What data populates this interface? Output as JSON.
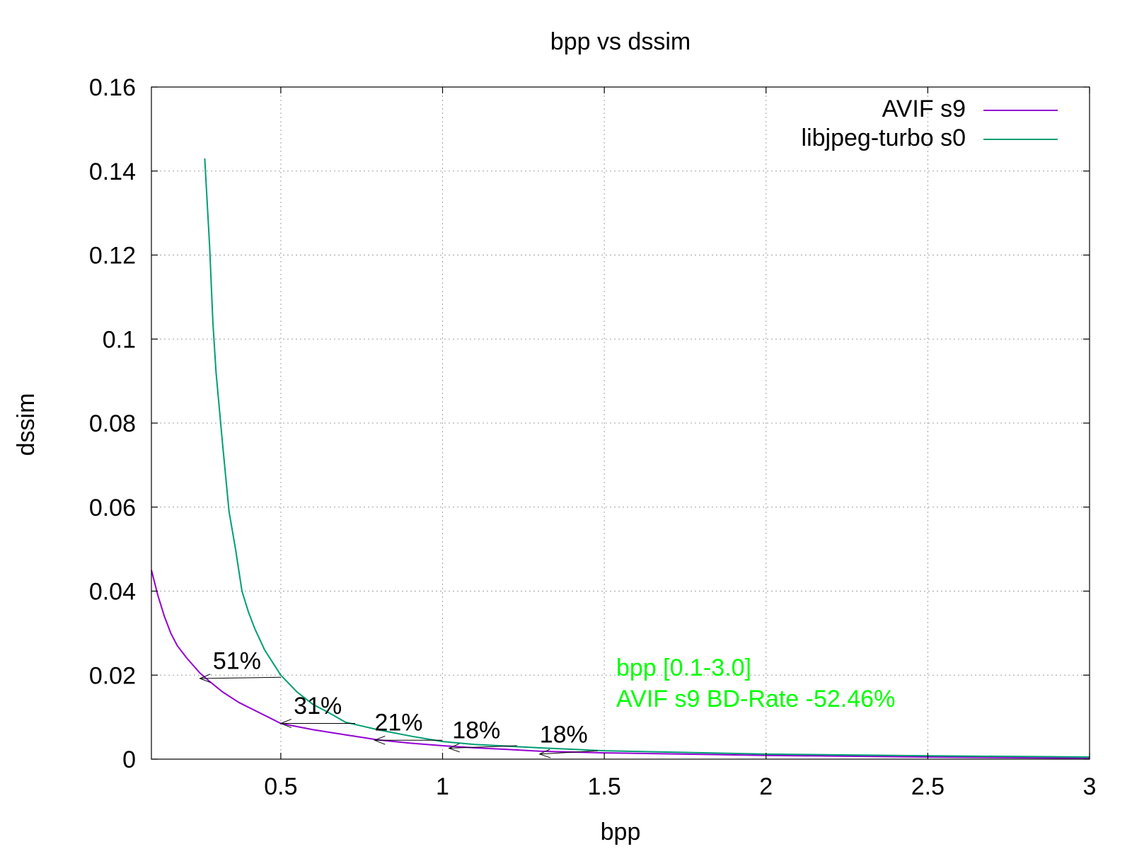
{
  "chart_data": {
    "type": "line",
    "title": "bpp vs dssim",
    "xlabel": "bpp",
    "ylabel": "dssim",
    "xlim": [
      0.1,
      3.0
    ],
    "ylim": [
      0,
      0.16
    ],
    "xticks": [
      0.5,
      1,
      1.5,
      2,
      2.5,
      3
    ],
    "xtick_labels": [
      "0.5",
      "1",
      "1.5",
      "2",
      "2.5",
      "3"
    ],
    "yticks": [
      0,
      0.02,
      0.04,
      0.06,
      0.08,
      0.1,
      0.12,
      0.14,
      0.16
    ],
    "ytick_labels": [
      "0",
      "0.02",
      "0.04",
      "0.06",
      "0.08",
      "0.1",
      "0.12",
      "0.14",
      "0.16"
    ],
    "grid": true,
    "legend_position": "top-right",
    "series": [
      {
        "name": "AVIF s9",
        "color": "#9400d3",
        "points": [
          [
            0.1,
            0.045
          ],
          [
            0.12,
            0.039
          ],
          [
            0.14,
            0.034
          ],
          [
            0.16,
            0.03
          ],
          [
            0.18,
            0.027
          ],
          [
            0.21,
            0.024
          ],
          [
            0.25,
            0.0205
          ],
          [
            0.28,
            0.0185
          ],
          [
            0.32,
            0.016
          ],
          [
            0.37,
            0.0135
          ],
          [
            0.43,
            0.0112
          ],
          [
            0.5,
            0.0085
          ],
          [
            0.6,
            0.007
          ],
          [
            0.7,
            0.0058
          ],
          [
            0.8,
            0.0046
          ],
          [
            0.9,
            0.0038
          ],
          [
            1.0,
            0.0032
          ],
          [
            1.1,
            0.0027
          ],
          [
            1.2,
            0.0023
          ],
          [
            1.3,
            0.0019
          ],
          [
            1.5,
            0.0015
          ],
          [
            1.75,
            0.0012
          ],
          [
            2.0,
            0.0009
          ],
          [
            2.5,
            0.0005
          ],
          [
            3.0,
            0.0002
          ]
        ]
      },
      {
        "name": "libjpeg-turbo s0",
        "color": "#009e73",
        "points": [
          [
            0.265,
            0.143
          ],
          [
            0.28,
            0.122
          ],
          [
            0.29,
            0.104
          ],
          [
            0.3,
            0.092
          ],
          [
            0.32,
            0.075
          ],
          [
            0.34,
            0.059
          ],
          [
            0.36,
            0.05
          ],
          [
            0.38,
            0.04
          ],
          [
            0.4,
            0.035
          ],
          [
            0.42,
            0.031
          ],
          [
            0.45,
            0.026
          ],
          [
            0.5,
            0.02
          ],
          [
            0.55,
            0.016
          ],
          [
            0.6,
            0.013
          ],
          [
            0.65,
            0.011
          ],
          [
            0.7,
            0.0088
          ],
          [
            0.8,
            0.007
          ],
          [
            0.9,
            0.0055
          ],
          [
            1.0,
            0.0042
          ],
          [
            1.1,
            0.0035
          ],
          [
            1.3,
            0.0027
          ],
          [
            1.5,
            0.002
          ],
          [
            2.0,
            0.0012
          ],
          [
            2.5,
            0.0008
          ],
          [
            3.0,
            0.0005
          ]
        ]
      }
    ],
    "annotations": [
      {
        "label": "51%",
        "from": [
          0.5,
          0.0195
        ],
        "to": [
          0.25,
          0.0192
        ],
        "label_at": [
          0.29,
          0.0215
        ]
      },
      {
        "label": "31%",
        "from": [
          0.73,
          0.0085
        ],
        "to": [
          0.5,
          0.0085
        ],
        "label_at": [
          0.54,
          0.0108
        ]
      },
      {
        "label": "21%",
        "from": [
          1.0,
          0.0045
        ],
        "to": [
          0.79,
          0.0045
        ],
        "label_at": [
          0.79,
          0.0068
        ]
      },
      {
        "label": "18%",
        "from": [
          1.23,
          0.0032
        ],
        "to": [
          1.02,
          0.0026
        ],
        "label_at": [
          1.03,
          0.005
        ]
      },
      {
        "label": "18%",
        "from": [
          1.48,
          0.002
        ],
        "to": [
          1.3,
          0.0012
        ],
        "label_at": [
          1.3,
          0.004
        ]
      }
    ],
    "bd_rate_text": {
      "line1": "bpp [0.1-3.0]",
      "line2": "AVIF s9 BD-Rate -52.46%",
      "color": "#00ff00"
    }
  }
}
